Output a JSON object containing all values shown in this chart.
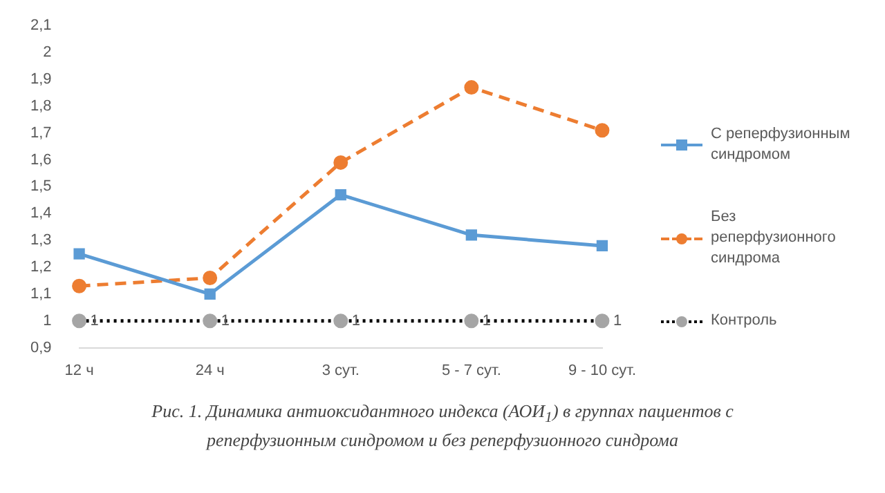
{
  "chart_data": {
    "type": "line",
    "categories": [
      "12 ч",
      "24 ч",
      "3 сут.",
      "5 - 7 сут.",
      "9 - 10 сут."
    ],
    "series": [
      {
        "name": "С реперфузионным синдромом",
        "color": "#5b9bd5",
        "values": [
          1.25,
          1.1,
          1.47,
          1.32,
          1.28
        ],
        "marker": "square",
        "line_style": "solid"
      },
      {
        "name": "Без реперфузионного синдрома",
        "color": "#ed7d31",
        "values": [
          1.13,
          1.16,
          1.59,
          1.87,
          1.71
        ],
        "marker": "circle",
        "line_style": "dashed"
      },
      {
        "name": "Контроль",
        "color": "#000000",
        "values": [
          1,
          1,
          1,
          1,
          1
        ],
        "marker": "circle",
        "line_style": "dotted",
        "value_labels": [
          "1",
          "1",
          "1",
          "1",
          "1"
        ]
      }
    ],
    "ylim": [
      0.9,
      2.1
    ],
    "yticks": [
      {
        "value": 0.9,
        "label": "0,9"
      },
      {
        "value": 1,
        "label": "1"
      },
      {
        "value": 1.1,
        "label": "1,1"
      },
      {
        "value": 1.2,
        "label": "1,2"
      },
      {
        "value": 1.3,
        "label": "1,3"
      },
      {
        "value": 1.4,
        "label": "1,4"
      },
      {
        "value": 1.5,
        "label": "1,5"
      },
      {
        "value": 1.6,
        "label": "1,6"
      },
      {
        "value": 1.7,
        "label": "1,7"
      },
      {
        "value": 1.8,
        "label": "1,8"
      },
      {
        "value": 1.9,
        "label": "1,9"
      },
      {
        "value": 2,
        "label": "2"
      },
      {
        "value": 2.1,
        "label": "2,1"
      }
    ],
    "grid": false,
    "legend": "right",
    "annotations": [
      "Рис. 1. Динамика антиоксидантного индекса (АОИ$_{1}$) в группах пациентов с реперфузионным синдромом и без реперфузионного синдрома"
    ]
  }
}
